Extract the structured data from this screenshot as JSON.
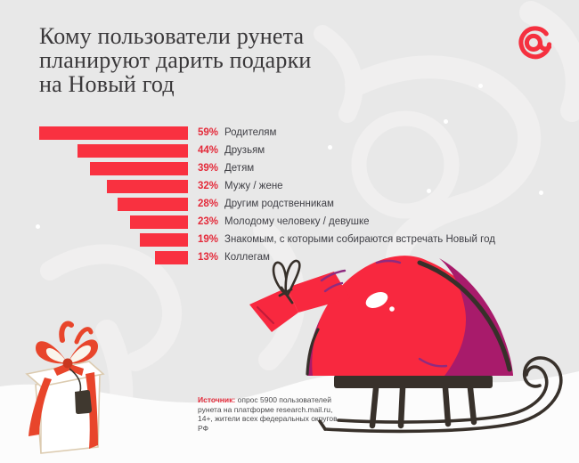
{
  "header": {
    "title": "Кому пользователи рунета планируют дарить подарки на Новый год",
    "title_lines": [
      "Кому пользователи рунета",
      "планируют дарить подарки",
      "на Новый год"
    ]
  },
  "logo": {
    "name": "mail-ru-at-logo",
    "color": "#f5303f"
  },
  "chart_data": {
    "type": "bar",
    "orientation": "horizontal, bars right-aligned growing left",
    "unit": "%",
    "categories": [
      "Родителям",
      "Друзьям",
      "Детям",
      "Мужу / жене",
      "Другим родственникам",
      "Молодому человеку / девушке",
      "Знакомым, с которыми собираются встречать Новый год",
      "Коллегам"
    ],
    "values": [
      59,
      44,
      39,
      32,
      28,
      23,
      19,
      13
    ],
    "value_labels": [
      "59%",
      "44%",
      "39%",
      "32%",
      "28%",
      "23%",
      "19%",
      "13%"
    ],
    "xlim": [
      0,
      59
    ],
    "grid": "off",
    "legend": "none",
    "bar_color": "#f93140",
    "value_label_color": "#e42a3a",
    "category_label_color": "#3f3f45",
    "title": "Кому пользователи рунета планируют дарить подарки на Новый год"
  },
  "source": {
    "prefix": "Источник:",
    "text": "опрос 5900 пользователей рунета на платформе research.mail.ru, 14+, жители всех федеральных округов РФ"
  },
  "theme": {
    "background": "#e8e8e8",
    "pattern": "#f0efef",
    "snow_ground": "#fcfcfc",
    "title_color": "#3a383a",
    "accent_red": "#f5303f",
    "sack_red": "#f8283f",
    "sack_magenta": "#a81b6b",
    "outline_dark": "#37302a",
    "ribbon_orange": "#e8452b"
  },
  "illustrations": {
    "sack_sled_alt": "красный мешок с подарками на санках",
    "gift_box_alt": "подарочная коробка с красным бантом"
  }
}
